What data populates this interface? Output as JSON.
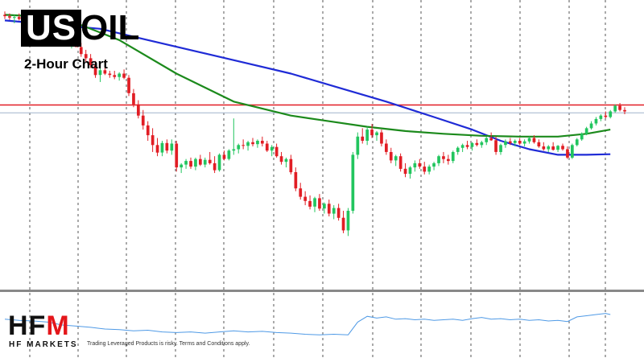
{
  "header": {
    "symbol_highlight": "US",
    "symbol_rest": "OIL",
    "subtitle": "2-Hour Chart"
  },
  "brand": {
    "logo_main": "HF",
    "logo_accent": "M",
    "logo_sub": "HF MARKETS",
    "disclaimer": "Trading Leveraged Products is risky. Terms and Conditions apply."
  },
  "colors": {
    "bull": "#22c55e",
    "bear": "#e11d24",
    "ma_fast": "#1c8a1c",
    "ma_slow": "#1f2bd6",
    "resistance": "#e11d24",
    "current_price": "#9fb3cc",
    "oscillator": "#4f9ae6",
    "grid": "#555555",
    "separator": "#888888"
  },
  "chart_data": {
    "type": "candlestick",
    "grid": true,
    "ylim": [
      0,
      100
    ],
    "oscillator_ylim": [
      0,
      100
    ],
    "candles": [
      [
        97.0,
        98.2,
        95.5,
        96.5
      ],
      [
        96.5,
        97.5,
        95.2,
        96.0
      ],
      [
        96.0,
        97.0,
        94.0,
        96.2
      ],
      [
        96.2,
        97.5,
        95.0,
        95.5
      ],
      [
        95.5,
        96.5,
        93.5,
        94.8
      ],
      [
        94.8,
        96.0,
        93.0,
        93.5
      ],
      [
        93.5,
        95.0,
        92.0,
        94.5
      ],
      [
        94.5,
        96.0,
        93.0,
        92.8
      ],
      [
        92.8,
        94.0,
        91.0,
        93.8
      ],
      [
        93.8,
        95.5,
        91.5,
        91.5
      ],
      [
        91.5,
        93.0,
        89.5,
        90.2
      ],
      [
        90.2,
        91.5,
        88.5,
        91.0
      ],
      [
        91.0,
        92.0,
        88.0,
        88.5
      ],
      [
        88.5,
        90.0,
        86.5,
        87.0
      ],
      [
        87.0,
        89.0,
        85.0,
        88.2
      ],
      [
        88.2,
        90.0,
        86.0,
        85.5
      ],
      [
        85.5,
        87.0,
        82.0,
        83.0
      ],
      [
        83.0,
        84.5,
        80.0,
        81.5
      ],
      [
        81.5,
        83.0,
        78.0,
        79.0
      ],
      [
        79.0,
        80.5,
        74.5,
        75.5
      ],
      [
        75.5,
        78.0,
        73.0,
        77.2
      ],
      [
        77.2,
        78.5,
        75.5,
        76.0
      ],
      [
        76.0,
        77.0,
        74.5,
        75.5
      ],
      [
        75.5,
        77.0,
        74.0,
        74.8
      ],
      [
        74.8,
        76.5,
        73.5,
        76.0
      ],
      [
        76.0,
        77.5,
        74.0,
        74.5
      ],
      [
        74.5,
        75.5,
        68.0,
        69.0
      ],
      [
        69.0,
        70.5,
        64.0,
        65.0
      ],
      [
        65.0,
        66.5,
        60.0,
        61.0
      ],
      [
        61.0,
        63.0,
        56.0,
        57.5
      ],
      [
        57.5,
        59.0,
        52.0,
        54.0
      ],
      [
        54.0,
        56.5,
        48.0,
        50.5
      ],
      [
        50.5,
        53.0,
        46.5,
        47.8
      ],
      [
        47.8,
        52.0,
        46.5,
        51.2
      ],
      [
        51.2,
        52.5,
        47.5,
        48.5
      ],
      [
        48.5,
        52.5,
        47.0,
        51.0
      ],
      [
        51.0,
        52.0,
        41.0,
        42.5
      ],
      [
        42.5,
        44.0,
        40.5,
        43.5
      ],
      [
        43.5,
        45.5,
        42.0,
        44.8
      ],
      [
        44.8,
        46.0,
        42.0,
        42.8
      ],
      [
        42.8,
        46.0,
        41.5,
        45.5
      ],
      [
        45.5,
        47.0,
        43.0,
        43.5
      ],
      [
        43.5,
        46.0,
        42.5,
        45.2
      ],
      [
        45.2,
        48.0,
        43.5,
        44.0
      ],
      [
        44.0,
        46.5,
        40.5,
        41.5
      ],
      [
        41.5,
        47.5,
        41.0,
        47.0
      ],
      [
        47.0,
        48.5,
        45.0,
        45.5
      ],
      [
        45.5,
        49.0,
        45.0,
        48.5
      ],
      [
        48.5,
        60.0,
        47.0,
        49.0
      ],
      [
        49.0,
        51.0,
        47.5,
        50.5
      ],
      [
        50.5,
        52.5,
        49.0,
        50.2
      ],
      [
        50.2,
        52.0,
        48.5,
        51.5
      ],
      [
        51.5,
        53.0,
        50.0,
        50.8
      ],
      [
        50.8,
        52.5,
        49.5,
        52.0
      ],
      [
        52.0,
        53.5,
        50.0,
        51.0
      ],
      [
        51.0,
        52.0,
        48.0,
        48.5
      ],
      [
        48.5,
        50.5,
        46.5,
        49.8
      ],
      [
        49.8,
        51.0,
        46.0,
        46.5
      ],
      [
        46.5,
        48.0,
        43.5,
        44.5
      ],
      [
        44.5,
        46.0,
        42.5,
        45.5
      ],
      [
        45.5,
        47.0,
        40.0,
        40.8
      ],
      [
        40.8,
        42.5,
        34.0,
        35.0
      ],
      [
        35.0,
        37.0,
        31.0,
        32.0
      ],
      [
        32.0,
        34.0,
        29.0,
        30.5
      ],
      [
        30.5,
        32.5,
        27.5,
        28.5
      ],
      [
        28.5,
        32.0,
        26.5,
        31.5
      ],
      [
        31.5,
        33.0,
        27.0,
        27.8
      ],
      [
        27.8,
        30.0,
        26.0,
        29.5
      ],
      [
        29.5,
        31.0,
        25.0,
        26.0
      ],
      [
        26.0,
        29.0,
        24.0,
        28.0
      ],
      [
        28.0,
        29.5,
        23.5,
        24.5
      ],
      [
        24.5,
        27.0,
        19.0,
        20.0
      ],
      [
        20.0,
        28.0,
        18.0,
        27.0
      ],
      [
        27.0,
        48.0,
        26.0,
        47.0
      ],
      [
        47.0,
        55.0,
        45.5,
        53.5
      ],
      [
        53.5,
        56.5,
        51.0,
        52.0
      ],
      [
        52.0,
        57.0,
        50.5,
        56.0
      ],
      [
        56.0,
        58.0,
        53.0,
        54.0
      ],
      [
        54.0,
        55.5,
        52.0,
        55.0
      ],
      [
        55.0,
        56.0,
        50.0,
        51.0
      ],
      [
        51.0,
        52.5,
        47.0,
        48.0
      ],
      [
        48.0,
        49.5,
        44.0,
        45.0
      ],
      [
        45.0,
        47.0,
        43.0,
        46.5
      ],
      [
        46.5,
        47.5,
        41.0,
        42.0
      ],
      [
        42.0,
        44.0,
        39.0,
        40.2
      ],
      [
        40.2,
        43.0,
        38.5,
        42.5
      ],
      [
        42.5,
        45.0,
        41.0,
        44.0
      ],
      [
        44.0,
        45.5,
        42.0,
        42.8
      ],
      [
        42.8,
        44.5,
        40.0,
        41.0
      ],
      [
        41.0,
        43.5,
        40.0,
        42.8
      ],
      [
        42.8,
        44.5,
        41.5,
        44.0
      ],
      [
        44.0,
        47.0,
        43.0,
        46.5
      ],
      [
        46.5,
        48.0,
        44.0,
        45.5
      ],
      [
        45.5,
        47.0,
        43.5,
        44.8
      ],
      [
        44.8,
        48.5,
        44.0,
        48.0
      ],
      [
        48.0,
        50.0,
        47.0,
        49.5
      ],
      [
        49.5,
        51.0,
        48.0,
        50.5
      ],
      [
        50.5,
        52.0,
        49.0,
        49.8
      ],
      [
        49.8,
        51.5,
        48.5,
        51.2
      ],
      [
        51.2,
        52.5,
        50.0,
        50.5
      ],
      [
        50.5,
        52.0,
        49.5,
        51.5
      ],
      [
        51.5,
        53.5,
        50.5,
        53.0
      ],
      [
        53.0,
        55.0,
        52.0,
        52.2
      ],
      [
        52.2,
        53.5,
        47.0,
        48.0
      ],
      [
        48.0,
        51.0,
        47.0,
        50.5
      ],
      [
        50.5,
        52.5,
        49.5,
        51.8
      ],
      [
        51.8,
        53.0,
        50.5,
        51.2
      ],
      [
        51.2,
        52.5,
        50.0,
        52.0
      ],
      [
        52.0,
        53.0,
        50.5,
        51.0
      ],
      [
        51.0,
        52.5,
        50.0,
        51.8
      ],
      [
        51.8,
        53.5,
        51.0,
        53.0
      ],
      [
        53.0,
        54.0,
        51.0,
        51.5
      ],
      [
        51.5,
        52.5,
        49.5,
        50.0
      ],
      [
        50.0,
        51.5,
        48.5,
        49.0
      ],
      [
        49.0,
        50.5,
        48.0,
        50.0
      ],
      [
        50.0,
        51.5,
        48.5,
        48.8
      ],
      [
        48.8,
        50.5,
        48.0,
        50.2
      ],
      [
        50.2,
        51.0,
        48.5,
        49.0
      ],
      [
        49.0,
        50.0,
        45.5,
        46.0
      ],
      [
        46.0,
        51.0,
        45.5,
        50.5
      ],
      [
        50.5,
        53.0,
        50.0,
        52.5
      ],
      [
        52.5,
        55.0,
        52.0,
        54.5
      ],
      [
        54.5,
        57.0,
        54.0,
        56.5
      ],
      [
        56.5,
        59.0,
        56.0,
        58.2
      ],
      [
        58.2,
        60.5,
        57.5,
        59.8
      ],
      [
        59.8,
        61.5,
        59.0,
        61.0
      ],
      [
        61.0,
        62.5,
        60.0,
        60.5
      ],
      [
        60.5,
        63.0,
        60.0,
        62.5
      ],
      [
        62.5,
        65.0,
        62.0,
        64.5
      ],
      [
        64.5,
        65.5,
        62.5,
        63.0
      ],
      [
        63.0,
        64.0,
        61.5,
        62.5
      ]
    ],
    "ma_fast": [
      [
        0,
        97.0
      ],
      [
        12,
        96.0
      ],
      [
        24,
        88.0
      ],
      [
        36,
        76.0
      ],
      [
        48,
        66.0
      ],
      [
        60,
        61.0
      ],
      [
        68,
        59.0
      ],
      [
        76,
        57.0
      ],
      [
        84,
        55.5
      ],
      [
        92,
        54.5
      ],
      [
        100,
        53.8
      ],
      [
        108,
        53.5
      ],
      [
        116,
        53.5
      ],
      [
        122,
        54.5
      ],
      [
        127,
        56.0
      ]
    ],
    "ma_slow": [
      [
        0,
        95.0
      ],
      [
        20,
        92.0
      ],
      [
        30,
        88.0
      ],
      [
        40,
        84.0
      ],
      [
        50,
        80.0
      ],
      [
        60,
        76.0
      ],
      [
        70,
        71.0
      ],
      [
        80,
        66.0
      ],
      [
        90,
        60.5
      ],
      [
        98,
        56.0
      ],
      [
        104,
        52.0
      ],
      [
        110,
        49.0
      ],
      [
        116,
        47.0
      ],
      [
        122,
        47.0
      ],
      [
        127,
        47.2
      ]
    ],
    "resistance_level": 64.8,
    "current_price": 62.0,
    "oscillator": [
      [
        0,
        60
      ],
      [
        3,
        58
      ],
      [
        6,
        57
      ],
      [
        9,
        55
      ],
      [
        12,
        50
      ],
      [
        15,
        48
      ],
      [
        18,
        46
      ],
      [
        21,
        43
      ],
      [
        24,
        42
      ],
      [
        27,
        40
      ],
      [
        30,
        41
      ],
      [
        33,
        38
      ],
      [
        36,
        37
      ],
      [
        39,
        38
      ],
      [
        42,
        36
      ],
      [
        45,
        38
      ],
      [
        48,
        40
      ],
      [
        51,
        38
      ],
      [
        54,
        39
      ],
      [
        57,
        37
      ],
      [
        60,
        36
      ],
      [
        63,
        34
      ],
      [
        66,
        33
      ],
      [
        69,
        34
      ],
      [
        72,
        33
      ],
      [
        74,
        55
      ],
      [
        76,
        65
      ],
      [
        78,
        62
      ],
      [
        80,
        64
      ],
      [
        82,
        60
      ],
      [
        84,
        61
      ],
      [
        86,
        59
      ],
      [
        88,
        60
      ],
      [
        90,
        58
      ],
      [
        92,
        59
      ],
      [
        94,
        60
      ],
      [
        96,
        58
      ],
      [
        98,
        61
      ],
      [
        100,
        63
      ],
      [
        102,
        60
      ],
      [
        104,
        61
      ],
      [
        106,
        59
      ],
      [
        108,
        60
      ],
      [
        110,
        58
      ],
      [
        112,
        59
      ],
      [
        114,
        57
      ],
      [
        116,
        58
      ],
      [
        118,
        56
      ],
      [
        120,
        64
      ],
      [
        122,
        66
      ],
      [
        124,
        68
      ],
      [
        126,
        70
      ],
      [
        127,
        68
      ]
    ]
  }
}
